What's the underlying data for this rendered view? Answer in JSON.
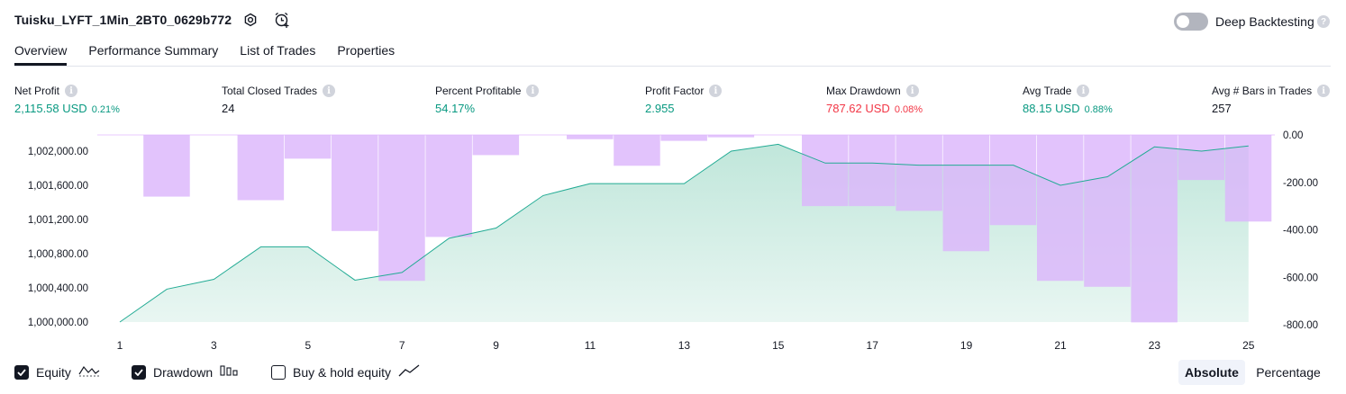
{
  "header": {
    "title": "Tuisku_LYFT_1Min_2BT0_0629b772",
    "deep_backtesting_label": "Deep Backtesting",
    "deep_backtesting_on": false
  },
  "tabs": [
    {
      "label": "Overview",
      "active": true
    },
    {
      "label": "Performance Summary",
      "active": false
    },
    {
      "label": "List of Trades",
      "active": false
    },
    {
      "label": "Properties",
      "active": false
    }
  ],
  "stats": [
    {
      "label": "Net Profit",
      "value": "2,115.58 USD",
      "sub": "0.21%",
      "tone": "pos"
    },
    {
      "label": "Total Closed Trades",
      "value": "24",
      "sub": "",
      "tone": "ink"
    },
    {
      "label": "Percent Profitable",
      "value": "54.17%",
      "sub": "",
      "tone": "pos"
    },
    {
      "label": "Profit Factor",
      "value": "2.955",
      "sub": "",
      "tone": "pos"
    },
    {
      "label": "Max Drawdown",
      "value": "787.62 USD",
      "sub": "0.08%",
      "tone": "neg"
    },
    {
      "label": "Avg Trade",
      "value": "88.15 USD",
      "sub": "0.88%",
      "tone": "pos"
    },
    {
      "label": "Avg # Bars in Trades",
      "value": "257",
      "sub": "",
      "tone": "ink"
    }
  ],
  "legend": {
    "equity": {
      "label": "Equity",
      "checked": true
    },
    "drawdown": {
      "label": "Drawdown",
      "checked": true
    },
    "buy_hold": {
      "label": "Buy & hold equity",
      "checked": false
    }
  },
  "mode": {
    "absolute": "Absolute",
    "percentage": "Percentage",
    "selected": "Absolute"
  },
  "colors": {
    "equity_line": "#22ab94",
    "equity_fill": "#b5e2d4",
    "drawdown_fill": "#dcb6fb",
    "positive": "#089981",
    "negative": "#f23645"
  },
  "chart_data": {
    "type": "line",
    "x": [
      1,
      2,
      3,
      4,
      5,
      6,
      7,
      8,
      9,
      10,
      11,
      12,
      13,
      14,
      15,
      16,
      17,
      18,
      19,
      20,
      21,
      22,
      23,
      24,
      25
    ],
    "x_ticks": [
      "1",
      "3",
      "5",
      "7",
      "9",
      "11",
      "13",
      "15",
      "17",
      "19",
      "21",
      "23",
      "25"
    ],
    "series": [
      {
        "name": "Equity",
        "axis": "left",
        "kind": "area",
        "values": [
          1000000,
          1000385,
          1000500,
          1000880,
          1000880,
          1000490,
          1000580,
          1000980,
          1001100,
          1001480,
          1001620,
          1001620,
          1001620,
          1002000,
          1002080,
          1001860,
          1001860,
          1001835,
          1001835,
          1001835,
          1001600,
          1001700,
          1002050,
          1002000,
          1002060
        ]
      },
      {
        "name": "Drawdown",
        "axis": "right",
        "kind": "bar",
        "values": [
          0,
          -260,
          0,
          -275,
          -100,
          -405,
          -615,
          -430,
          -85,
          0,
          -18,
          -130,
          -25,
          -10,
          0,
          -300,
          -300,
          -320,
          -490,
          -380,
          -615,
          -640,
          -790,
          -190,
          -365
        ]
      }
    ],
    "left_axis": {
      "ticks": [
        "1,000,000.00",
        "1,000,400.00",
        "1,000,800.00",
        "1,001,200.00",
        "1,001,600.00",
        "1,002,000.00"
      ],
      "ylim": [
        1000000,
        1002200
      ]
    },
    "right_axis": {
      "ticks": [
        "0.00",
        "-200.00",
        "-400.00",
        "-600.00",
        "-800.00"
      ],
      "ylim": [
        -800,
        0
      ]
    }
  }
}
